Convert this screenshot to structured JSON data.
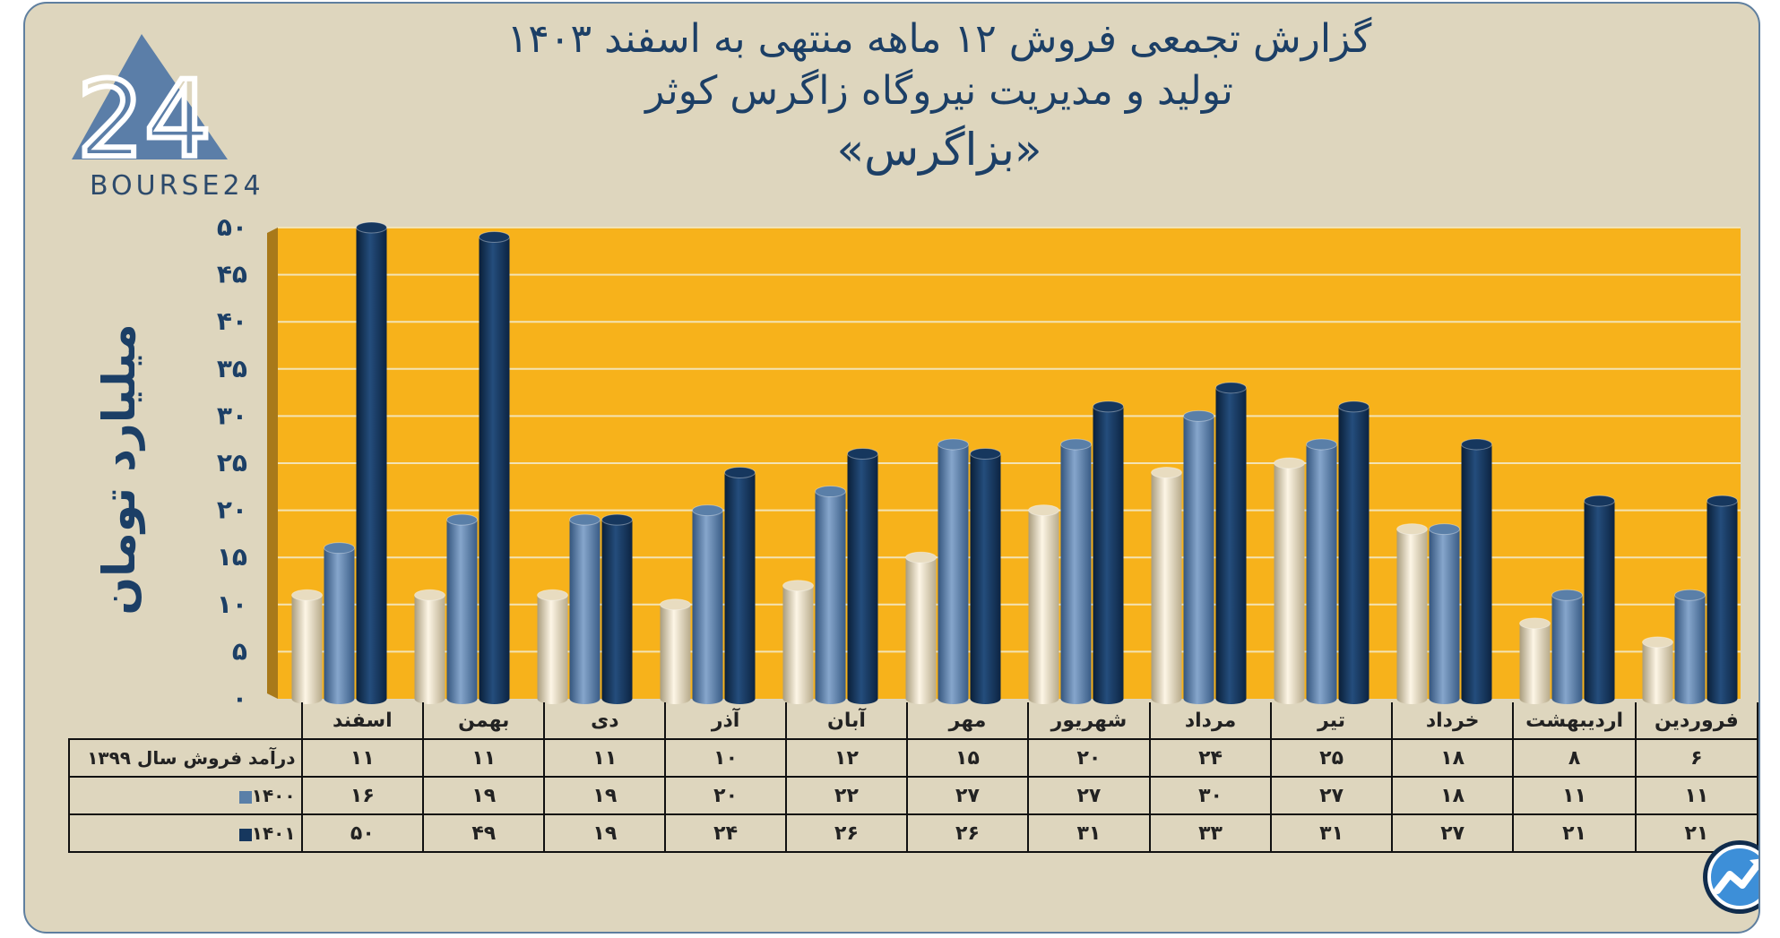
{
  "header": {
    "title_line1": "گزارش تجمعی فروش ۱۲ ماهه منتهی به اسفند ۱۴۰۳",
    "title_line2": "تولید و مدیریت نیروگاه زاگرس کوثر",
    "title_line3": "«بزاگرس»"
  },
  "logo": {
    "text": "BOURSE24",
    "number_glyph": "24",
    "icon": "bourse24-logo-icon"
  },
  "badge": {
    "icon": "trend-chart-badge-icon"
  },
  "chart_data": {
    "type": "bar",
    "ylabel": "میلیارد تومان",
    "ylim": [
      0,
      50
    ],
    "yticks": [
      0,
      5,
      10,
      15,
      20,
      25,
      30,
      35,
      40,
      45,
      50
    ],
    "ytick_labels": [
      "۰",
      "۵",
      "۱۰",
      "۱۵",
      "۲۰",
      "۲۵",
      "۳۰",
      "۳۵",
      "۴۰",
      "۴۵",
      "۵۰"
    ],
    "grid": true,
    "categories": [
      "فروردین",
      "اردیبهشت",
      "خرداد",
      "تیر",
      "مرداد",
      "شهریور",
      "مهر",
      "آبان",
      "آذر",
      "دی",
      "بهمن",
      "اسفند"
    ],
    "series": [
      {
        "name": "درآمد فروش سال ۱۳۹۹",
        "color": "#e8dcc0",
        "values": [
          6,
          8,
          18,
          25,
          24,
          20,
          15,
          12,
          10,
          11,
          11,
          11
        ],
        "labels": [
          "۶",
          "۸",
          "۱۸",
          "۲۵",
          "۲۴",
          "۲۰",
          "۱۵",
          "۱۲",
          "۱۰",
          "۱۱",
          "۱۱",
          "۱۱"
        ]
      },
      {
        "name": "۱۴۰۰",
        "color": "#5a7fa8",
        "values": [
          11,
          11,
          18,
          27,
          30,
          27,
          27,
          22,
          20,
          19,
          19,
          16
        ],
        "labels": [
          "۱۱",
          "۱۱",
          "۱۸",
          "۲۷",
          "۳۰",
          "۲۷",
          "۲۷",
          "۲۲",
          "۲۰",
          "۱۹",
          "۱۹",
          "۱۶"
        ]
      },
      {
        "name": "۱۴۰۱",
        "color": "#16375e",
        "values": [
          21,
          21,
          27,
          31,
          33,
          31,
          26,
          26,
          24,
          19,
          49,
          50
        ],
        "labels": [
          "۲۱",
          "۲۱",
          "۲۷",
          "۳۱",
          "۳۳",
          "۳۱",
          "۲۶",
          "۲۶",
          "۲۴",
          "۱۹",
          "۴۹",
          "۵۰"
        ]
      }
    ],
    "colors": {
      "plot_background": "#f7b21b",
      "card_background": "#ded6be",
      "title": "#1c3f66"
    }
  }
}
